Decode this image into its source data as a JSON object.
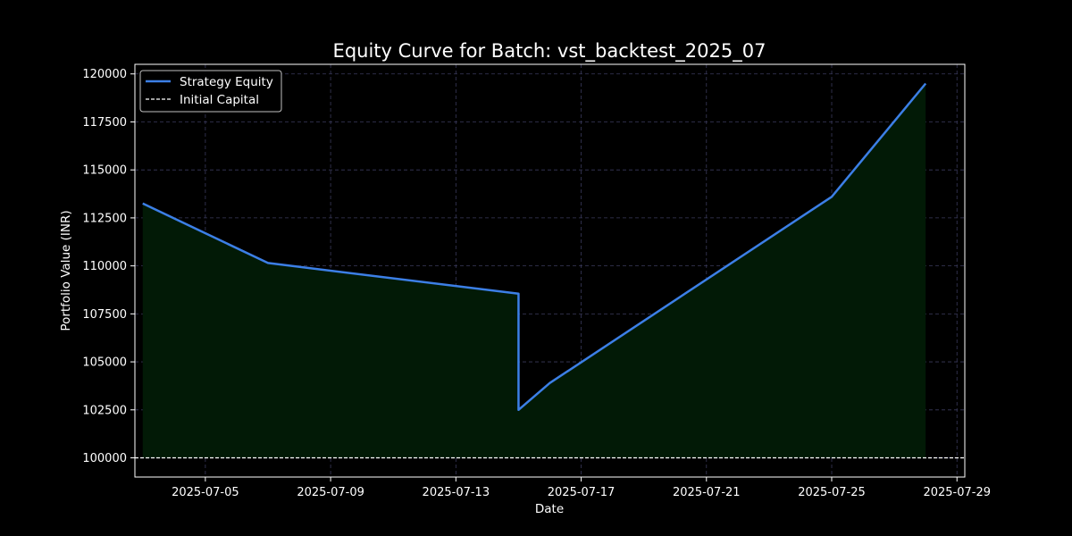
{
  "chart_data": {
    "type": "line",
    "title": "Equity Curve for Batch: vst_backtest_2025_07",
    "xlabel": "Date",
    "ylabel": "Portfolio Value (INR)",
    "x_ticks": [
      "2025-07-05",
      "2025-07-09",
      "2025-07-13",
      "2025-07-17",
      "2025-07-21",
      "2025-07-25",
      "2025-07-29"
    ],
    "y_ticks": [
      100000,
      102500,
      105000,
      107500,
      110000,
      112500,
      115000,
      117500,
      120000
    ],
    "xlim": [
      "2025-07-02T18:00",
      "2025-07-29T06:00"
    ],
    "ylim": [
      99000,
      120500
    ],
    "grid": true,
    "legend_position": "top-left",
    "series": [
      {
        "name": "Strategy Equity",
        "color": "#3c7fe6",
        "fill_color": "#021a06",
        "points": [
          {
            "x": "2025-07-03",
            "y": 113250
          },
          {
            "x": "2025-07-07",
            "y": 110150
          },
          {
            "x": "2025-07-15",
            "y": 108550
          },
          {
            "x": "2025-07-15",
            "y": 102500
          },
          {
            "x": "2025-07-16",
            "y": 103900
          },
          {
            "x": "2025-07-25",
            "y": 113600
          },
          {
            "x": "2025-07-28",
            "y": 119500
          }
        ]
      },
      {
        "name": "Initial Capital",
        "color": "#ffffff",
        "style": "dashed",
        "value": 100000
      }
    ]
  }
}
